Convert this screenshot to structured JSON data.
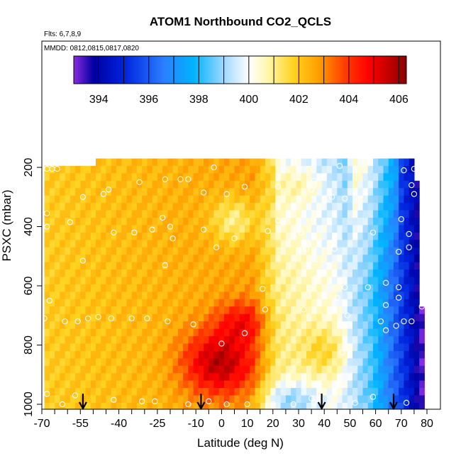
{
  "chart_data": {
    "type": "heatmap",
    "title": "ATOM1 Northbound CO2_QCLS",
    "flights_label": "Flts: 6,7,8,9",
    "dates_label": "MMDD: 0812,0815,0817,0820",
    "xlabel": "Latitude (deg N)",
    "ylabel": "PSXC (mbar)",
    "xlim": [
      -70,
      80
    ],
    "ylim": [
      1000,
      170
    ],
    "x_ticks": [
      -70,
      -55,
      -40,
      -25,
      -10,
      0,
      10,
      20,
      30,
      40,
      50,
      60,
      70,
      80
    ],
    "y_ticks": [
      200,
      400,
      600,
      800,
      1000
    ],
    "colorbar": {
      "range": [
        393,
        406.3
      ],
      "ticks": [
        394,
        396,
        398,
        400,
        402,
        404,
        406
      ],
      "stops": [
        {
          "value": 393.0,
          "color": "#8a2be2"
        },
        {
          "value": 393.8,
          "color": "#0000a0"
        },
        {
          "value": 395.0,
          "color": "#0022dd"
        },
        {
          "value": 396.6,
          "color": "#2a7fff"
        },
        {
          "value": 397.8,
          "color": "#00b4ff"
        },
        {
          "value": 399.0,
          "color": "#9fd8ff"
        },
        {
          "value": 400.0,
          "color": "#ffffff"
        },
        {
          "value": 400.8,
          "color": "#fff6a8"
        },
        {
          "value": 401.8,
          "color": "#ffd21e"
        },
        {
          "value": 402.8,
          "color": "#ff9e00"
        },
        {
          "value": 403.8,
          "color": "#ff4000"
        },
        {
          "value": 404.8,
          "color": "#ff0000"
        },
        {
          "value": 406.3,
          "color": "#8b0000"
        }
      ]
    },
    "arrows_latitude": [
      -54,
      -8,
      39,
      67
    ],
    "sample_points": [
      {
        "lat": -68,
        "p": 205
      },
      {
        "lat": -66,
        "p": 205
      },
      {
        "lat": -64,
        "p": 205
      },
      {
        "lat": -44,
        "p": 275
      },
      {
        "lat": -32,
        "p": 250
      },
      {
        "lat": -22,
        "p": 240
      },
      {
        "lat": -16,
        "p": 240
      },
      {
        "lat": -13,
        "p": 240
      },
      {
        "lat": -3,
        "p": 200
      },
      {
        "lat": -54,
        "p": 300
      },
      {
        "lat": -46,
        "p": 290
      },
      {
        "lat": -7,
        "p": 285
      },
      {
        "lat": 2,
        "p": 290
      },
      {
        "lat": 9,
        "p": 265
      },
      {
        "lat": 22,
        "p": 265
      },
      {
        "lat": 35,
        "p": 275
      },
      {
        "lat": 43,
        "p": 300
      },
      {
        "lat": 48,
        "p": 305
      },
      {
        "lat": 36,
        "p": 245
      },
      {
        "lat": 46,
        "p": 195
      },
      {
        "lat": 71,
        "p": 210
      },
      {
        "lat": 75,
        "p": 205
      },
      {
        "lat": 78,
        "p": 210
      },
      {
        "lat": 74,
        "p": 260
      },
      {
        "lat": 75,
        "p": 290
      },
      {
        "lat": -68,
        "p": 355
      },
      {
        "lat": -68,
        "p": 400
      },
      {
        "lat": -59,
        "p": 385
      },
      {
        "lat": -23,
        "p": 370
      },
      {
        "lat": -20,
        "p": 400
      },
      {
        "lat": -42,
        "p": 420
      },
      {
        "lat": -34,
        "p": 420
      },
      {
        "lat": -27,
        "p": 410
      },
      {
        "lat": -19,
        "p": 440
      },
      {
        "lat": -7,
        "p": 410
      },
      {
        "lat": 5,
        "p": 440
      },
      {
        "lat": 18,
        "p": 415
      },
      {
        "lat": 22,
        "p": 380
      },
      {
        "lat": 31,
        "p": 420
      },
      {
        "lat": 59,
        "p": 420
      },
      {
        "lat": 73,
        "p": 425
      },
      {
        "lat": 70,
        "p": 375
      },
      {
        "lat": -54,
        "p": 515
      },
      {
        "lat": -22,
        "p": 530
      },
      {
        "lat": -2,
        "p": 470
      },
      {
        "lat": 33,
        "p": 475
      },
      {
        "lat": 44,
        "p": 475
      },
      {
        "lat": 69,
        "p": 485
      },
      {
        "lat": 73,
        "p": 470
      },
      {
        "lat": 37,
        "p": 575
      },
      {
        "lat": 39,
        "p": 560
      },
      {
        "lat": 48,
        "p": 605
      },
      {
        "lat": 57,
        "p": 605
      },
      {
        "lat": 16,
        "p": 610
      },
      {
        "lat": 64,
        "p": 590
      },
      {
        "lat": 69,
        "p": 605
      },
      {
        "lat": -67,
        "p": 650
      },
      {
        "lat": 69,
        "p": 640
      },
      {
        "lat": 45,
        "p": 640
      },
      {
        "lat": 64,
        "p": 665
      },
      {
        "lat": 78,
        "p": 670
      },
      {
        "lat": -69,
        "p": 710
      },
      {
        "lat": -61,
        "p": 720
      },
      {
        "lat": -52,
        "p": 710
      },
      {
        "lat": -48,
        "p": 705
      },
      {
        "lat": -43,
        "p": 710
      },
      {
        "lat": -35,
        "p": 710
      },
      {
        "lat": -29,
        "p": 710
      },
      {
        "lat": -21,
        "p": 720
      },
      {
        "lat": -11,
        "p": 730
      },
      {
        "lat": -56,
        "p": 720
      },
      {
        "lat": 17,
        "p": 680
      },
      {
        "lat": 32,
        "p": 680
      },
      {
        "lat": 49,
        "p": 700
      },
      {
        "lat": 62,
        "p": 720
      },
      {
        "lat": 71,
        "p": 720
      },
      {
        "lat": 74,
        "p": 720
      },
      {
        "lat": 68,
        "p": 735
      },
      {
        "lat": 64,
        "p": 750
      },
      {
        "lat": 9,
        "p": 760
      },
      {
        "lat": 0,
        "p": 795
      },
      {
        "lat": 47,
        "p": 825
      },
      {
        "lat": -57,
        "p": 970
      },
      {
        "lat": -68,
        "p": 965
      },
      {
        "lat": -26,
        "p": 990
      },
      {
        "lat": -31,
        "p": 990
      },
      {
        "lat": -42,
        "p": 985
      },
      {
        "lat": -62,
        "p": 1000
      },
      {
        "lat": -5,
        "p": 990
      },
      {
        "lat": 2,
        "p": 1000
      },
      {
        "lat": 10,
        "p": 1000
      },
      {
        "lat": -13,
        "p": 1000
      },
      {
        "lat": 20,
        "p": 1000
      },
      {
        "lat": 28,
        "p": 1000
      },
      {
        "lat": 35,
        "p": 980
      },
      {
        "lat": 36,
        "p": 995
      },
      {
        "lat": 52,
        "p": 995
      },
      {
        "lat": 72,
        "p": 995
      },
      {
        "lat": 59,
        "p": 975
      }
    ]
  }
}
